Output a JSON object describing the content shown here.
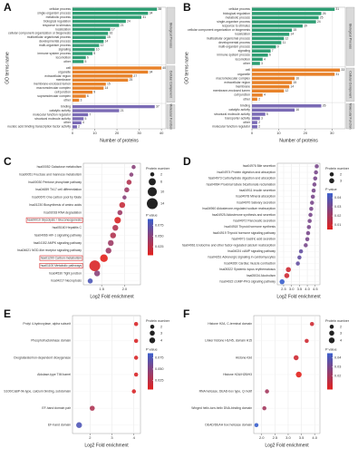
{
  "chart_data": [
    {
      "type": "bar",
      "panel": "A",
      "xlabel": "Number of proteins",
      "ylabel": "GO terms name",
      "xlim": [
        0,
        42
      ],
      "xticks": [
        0,
        10,
        20,
        30,
        40
      ],
      "groups": [
        {
          "name": "Biological Process",
          "color": "#2e9e73",
          "categories": [
            "cellular process",
            "single-organism process",
            "metabolic process",
            "biological regulation",
            "response to stimulus",
            "localization",
            "cellular component organization or biogenesis",
            "multicellular organismal process",
            "developmental process",
            "multi-organism process",
            "signaling",
            "immune system process",
            "locomotion",
            "other"
          ],
          "values": [
            38,
            34,
            31,
            24,
            21,
            17,
            16,
            15,
            14,
            12,
            10,
            9,
            6,
            5
          ]
        },
        {
          "name": "Cellular Component",
          "color": "#e8822a",
          "categories": [
            "cell",
            "organelle",
            "extracellular region",
            "membrane",
            "membrane-enclosed lumen",
            "macromolecular complex",
            "cell junction",
            "supramolecular complex",
            "other"
          ],
          "values": [
            40,
            34,
            27,
            25,
            15,
            14,
            9,
            6,
            3
          ]
        },
        {
          "name": "Molecular Function",
          "color": "#7b6bb5",
          "categories": [
            "binding",
            "catalytic activity",
            "molecular function regulator",
            "structural molecule activity",
            "other",
            "nucleic acid binding transcription factor activity"
          ],
          "values": [
            37,
            21,
            7,
            5,
            4,
            2
          ]
        }
      ]
    },
    {
      "type": "bar",
      "panel": "B",
      "xlabel": "Number of proteins",
      "ylabel": "GO terms name",
      "xlim": [
        0,
        35
      ],
      "xticks": [
        0,
        10,
        20,
        30
      ],
      "groups": [
        {
          "name": "Biological Process",
          "color": "#2e9e73",
          "categories": [
            "cellular process",
            "biological regulation",
            "metabolic process",
            "single-organism process",
            "response to stimulus",
            "cellular component organization or biogenesis",
            "localization",
            "multicellular organismal process",
            "developmental process",
            "multi-organism process",
            "signaling",
            "immune system process",
            "locomotion",
            "other"
          ],
          "values": [
            31,
            26,
            25,
            24,
            19,
            15,
            14,
            12,
            11,
            9,
            7,
            6,
            4,
            3
          ]
        },
        {
          "name": "Cellular Component",
          "color": "#e8822a",
          "categories": [
            "cell",
            "organelle",
            "macromolecular complex",
            "extracellular region",
            "membrane",
            "membrane-enclosed lumen",
            "cell junction",
            "other"
          ],
          "values": [
            33,
            31,
            16,
            15,
            14,
            12,
            4,
            2
          ]
        },
        {
          "name": "Molecular Function",
          "color": "#7b6bb5",
          "categories": [
            "binding",
            "catalytic activity",
            "structural molecule activity",
            "transporter activity",
            "other",
            "molecular function regulator"
          ],
          "values": [
            26,
            16,
            5,
            3,
            2,
            2
          ]
        }
      ]
    },
    {
      "type": "bubble",
      "panel": "C",
      "xlabel": "Log2 Fold enrichment",
      "xlim": [
        1.1,
        2.35
      ],
      "xticks": [
        1.5,
        {
          "value": 2,
          "label": "2.0"
        }
      ],
      "highlight_color": "#d62728",
      "categories": [
        "hsa00052 Galactose metabolism",
        "hsa00051 Fructose and mannose metabolism",
        "hsa00030 Pentose phosphate pathway",
        "hsa04659 Th17 cell differentiation",
        "hsa00670 One carbon pool by folate",
        "hsa01230 Biosynthesis of amino acids",
        "hsa03018 RNA degradation",
        "hsa00010 Glycolysis / Gluconeogenesis",
        "hsa05160 Hepatitis C",
        "hsa04066 HIF-1 signaling pathway",
        "hsa04152 AMPK signaling pathway",
        "hsa04621 NOD-like receptor signaling pathway",
        "hsa01200 Carbon metabolism",
        "hsa01100 Metabolic pathways",
        "hsa04530 Tight junction",
        "hsa04217 Necroptosis"
      ],
      "highlighted": [
        false,
        false,
        false,
        false,
        false,
        false,
        false,
        true,
        false,
        false,
        false,
        false,
        true,
        true,
        false,
        false
      ],
      "x": [
        2.2,
        2.15,
        2.1,
        2.05,
        2.0,
        1.95,
        1.9,
        1.85,
        1.8,
        1.75,
        1.7,
        1.65,
        1.55,
        1.35,
        1.4,
        1.25
      ],
      "size": [
        2,
        2,
        3,
        3,
        2,
        4,
        3,
        5,
        4,
        4,
        4,
        4,
        7,
        14,
        4,
        3
      ],
      "pvalue": [
        0.05,
        0.05,
        0.03,
        0.04,
        0.05,
        0.02,
        0.04,
        0.01,
        0.03,
        0.03,
        0.04,
        0.04,
        0.005,
        0.01,
        0.05,
        0.08
      ],
      "size_legend": {
        "title": "Protein number",
        "values": [
          2,
          6,
          10,
          14
        ]
      },
      "color_legend": {
        "title": "P value",
        "range": [
          0.005,
          0.09
        ],
        "colors": [
          "#e3211c",
          "#3a5fcd"
        ],
        "ticks": [
          0.025,
          {
            "value": 0.05,
            "label": "0.050"
          },
          0.075
        ]
      }
    },
    {
      "type": "bubble",
      "panel": "D",
      "xlabel": "Log2 Fold enrichment",
      "xlim": [
        2.1,
        4.8
      ],
      "xticks": [
        2.5,
        {
          "value": 3,
          "label": "3.0"
        },
        3.5,
        {
          "value": 4,
          "label": "4.0"
        },
        4.5
      ],
      "categories": [
        "hsa04976 Bile secretion",
        "hsa04974 Protein digestion and absorption",
        "hsa04973 Carbohydrate digestion and absorption",
        "hsa04964 Proximal tubule bicarbonate reclamation",
        "hsa04911 Insulin secretion",
        "hsa04978 Mineral absorption",
        "hsa04970 Salivary secretion",
        "hsa04960 Aldosterone-regulated sodium reabsorption",
        "hsa04925 Aldosterone synthesis and secretion",
        "hsa04972 Pancreatic secretion",
        "hsa04918 Thyroid hormone synthesis",
        "hsa04919 Thyroid hormone signaling pathway",
        "hsa04971 Gastric acid secretion",
        "hsa04961 Endocrine and other factor-regulated calcium reabsorption",
        "hsa04024 cAMP signaling pathway",
        "hsa04261 Adrenergic signaling in cardiomyocytes",
        "hsa04260 Cardiac muscle contraction",
        "hsa05322 Systemic lupus erythematosus",
        "hsa05034 Alcoholism",
        "hsa04022 cGMP-PKG signaling pathway"
      ],
      "x": [
        4.6,
        4.55,
        4.5,
        4.45,
        4.4,
        4.35,
        4.3,
        4.25,
        4.2,
        4.15,
        4.1,
        4.05,
        4.0,
        3.9,
        3.6,
        3.5,
        3.4,
        2.8,
        2.7,
        2.4
      ],
      "size": [
        2,
        2,
        2,
        2,
        2,
        2,
        2,
        2,
        2,
        2,
        2,
        2,
        2,
        2,
        2,
        2,
        2,
        3,
        3,
        3
      ],
      "pvalue": [
        0.03,
        0.03,
        0.03,
        0.03,
        0.03,
        0.03,
        0.03,
        0.03,
        0.03,
        0.03,
        0.03,
        0.03,
        0.03,
        0.03,
        0.035,
        0.035,
        0.035,
        0.01,
        0.01,
        0.045
      ],
      "size_legend": {
        "title": "Protein number",
        "values": [
          2,
          3
        ]
      },
      "color_legend": {
        "title": "P value",
        "range": [
          0.005,
          0.045
        ],
        "colors": [
          "#e3211c",
          "#3a5fcd"
        ],
        "ticks": [
          0.01,
          0.02,
          0.03,
          0.04
        ]
      }
    },
    {
      "type": "bubble",
      "panel": "E",
      "xlabel": "Log2 Fold enrichment",
      "xlim": [
        1.2,
        4.3
      ],
      "xticks": [
        2,
        3,
        4
      ],
      "categories": [
        "Prolyl 4-hydroxylase, alpha subunit",
        "Phosphofructokinase domain",
        "Oxoglutarate/iron-dependent dioxygenase",
        "Aldolase-type TIM barrel",
        "S100/CaBP-9k-type, calcium binding, subdomain",
        "EF-hand domain pair",
        "EF-hand domain"
      ],
      "x": [
        4.1,
        4.1,
        4.1,
        4.1,
        4.0,
        2.1,
        1.5
      ],
      "size": [
        2,
        2,
        2,
        2,
        2,
        3,
        4
      ],
      "pvalue": [
        0.01,
        0.01,
        0.01,
        0.01,
        0.01,
        0.03,
        0.075
      ],
      "size_legend": {
        "title": "Protein number",
        "values": [
          2,
          3,
          4
        ]
      },
      "color_legend": {
        "title": "P value",
        "range": [
          0.005,
          0.085
        ],
        "colors": [
          "#e3211c",
          "#3a5fcd"
        ],
        "ticks": [
          0.025,
          {
            "value": 0.05,
            "label": "0.050"
          },
          0.075
        ]
      }
    },
    {
      "type": "bubble",
      "panel": "F",
      "xlabel": "Log2 Fold enrichment",
      "xlim": [
        1.7,
        4.2
      ],
      "xticks": [
        {
          "value": 2,
          "label": "2.0"
        },
        2.5,
        {
          "value": 3,
          "label": "3.0"
        },
        3.5,
        {
          "value": 4,
          "label": "4.0"
        }
      ],
      "categories": [
        "Histone H2A, C-terminal domain",
        "Linker histone H1/H5, domain H15",
        "Histone-fold",
        "Histone H2A/H2B/H3",
        "RNA helicase, DEAD-box type, Q motif",
        "Winged helix-turn-helix DNA-binding domain",
        "DEAD/DEAH box helicase domain"
      ],
      "x": [
        3.9,
        3.7,
        3.3,
        3.4,
        2.2,
        2.1,
        1.8
      ],
      "size": [
        2,
        2,
        3,
        4,
        2,
        2,
        2
      ],
      "pvalue": [
        0.01,
        0.01,
        0.01,
        0.005,
        0.02,
        0.02,
        0.045
      ],
      "size_legend": {
        "title": "Protein number",
        "values": [
          2,
          3,
          4
        ]
      },
      "color_legend": {
        "title": "P value",
        "range": [
          0.005,
          0.045
        ],
        "colors": [
          "#e3211c",
          "#3a5fcd"
        ],
        "ticks": [
          0.02,
          0.03,
          0.04
        ]
      }
    }
  ]
}
